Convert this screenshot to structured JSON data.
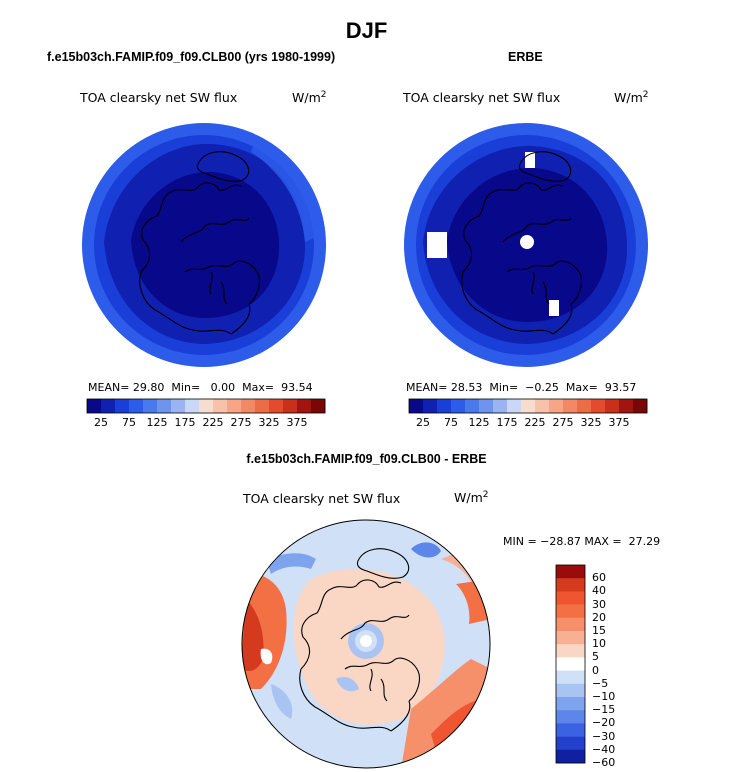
{
  "title": "DJF",
  "colors": {
    "lbar": [
      "#08088a",
      "#1020b0",
      "#1a3fd8",
      "#2d5cea",
      "#4a78ee",
      "#6e94f0",
      "#99b3f3",
      "#c9d8f7",
      "#f7ddd0",
      "#f8c2aa",
      "#f7a587",
      "#f28866",
      "#ee6b48",
      "#e44a2d",
      "#c8301c",
      "#a31410",
      "#7a0606"
    ],
    "dbar": [
      "#9a0c0c",
      "#d43a1e",
      "#ee5530",
      "#f37044",
      "#f5906a",
      "#f8b095",
      "#fad6c4",
      "#ffffff",
      "#cfe0f7",
      "#a9c4f2",
      "#7ea4ee",
      "#5c86ea",
      "#3a62e2",
      "#2240cc",
      "#1020a0"
    ]
  },
  "chart_data": [
    {
      "type": "heatmap",
      "panel": "left",
      "title": "f.e15b03ch.FAMIP.f09_f09.CLB00 (yrs 1980-1999)",
      "variable": "TOA clearsky net SW flux",
      "units": "W/m",
      "units_sup": "2",
      "stats": {
        "mean_label": "MEAN=",
        "mean": "29.80",
        "min_label": "Min=",
        "min": "0.00",
        "max_label": "Max=",
        "max": "93.54"
      },
      "colorbar_ticks": [
        "25",
        "75",
        "125",
        "175",
        "225",
        "275",
        "325",
        "375"
      ]
    },
    {
      "type": "heatmap",
      "panel": "right",
      "title": "ERBE",
      "variable": "TOA clearsky net SW flux",
      "units": "W/m",
      "units_sup": "2",
      "stats": {
        "mean_label": "MEAN=",
        "mean": "28.53",
        "min_label": "Min=",
        "min": "−0.25",
        "max_label": "Max=",
        "max": "93.57"
      },
      "colorbar_ticks": [
        "25",
        "75",
        "125",
        "175",
        "225",
        "275",
        "325",
        "375"
      ]
    },
    {
      "type": "heatmap",
      "panel": "bottom",
      "title": "f.e15b03ch.FAMIP.f09_f09.CLB00 - ERBE",
      "variable": "TOA clearsky net SW flux",
      "units": "W/m",
      "units_sup": "2",
      "stats_text": "MIN = −28.87 MAX =  27.29",
      "colorbar_ticks": [
        "60",
        "40",
        "30",
        "20",
        "15",
        "10",
        "5",
        "0",
        "−5",
        "−10",
        "−15",
        "−20",
        "−30",
        "−40",
        "−60"
      ]
    }
  ]
}
